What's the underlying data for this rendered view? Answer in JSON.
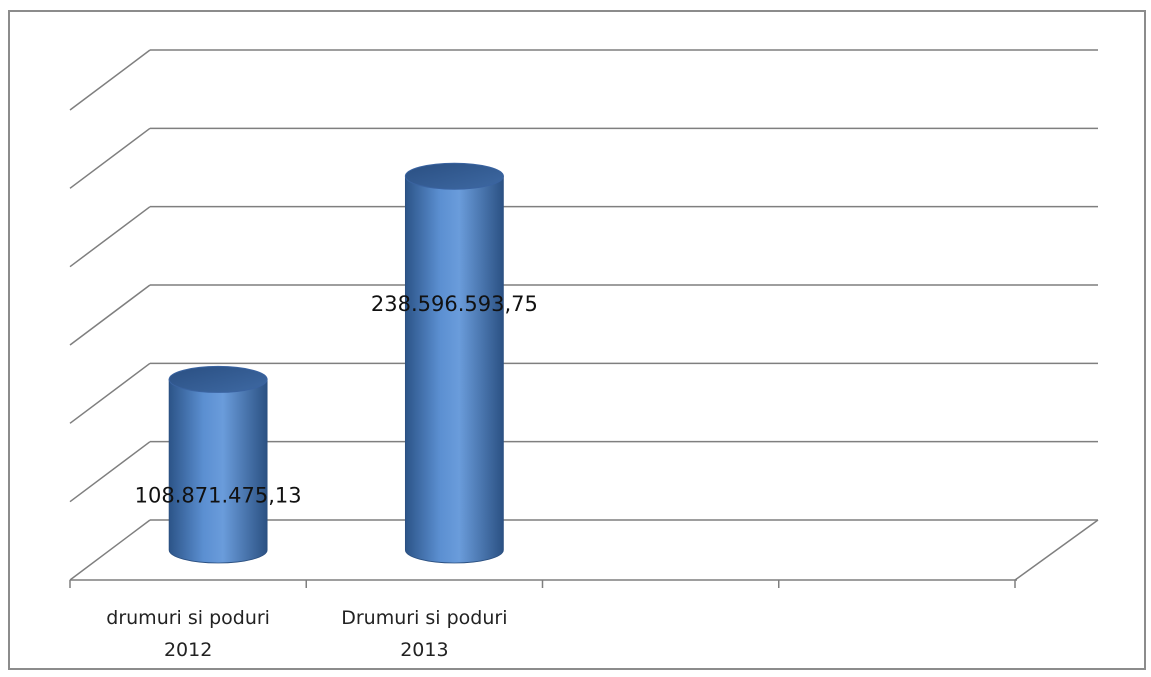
{
  "chart_data": {
    "type": "bar",
    "style": "3d-cylinder",
    "categories": [
      [
        "drumuri si poduri",
        "2012"
      ],
      [
        "Drumuri si poduri",
        "2013"
      ],
      [
        "",
        ""
      ],
      [
        "",
        ""
      ]
    ],
    "values": [
      108871475.13,
      238596593.75,
      null,
      null
    ],
    "data_labels": [
      "108.871.475,13",
      "238.596.593,75",
      "",
      ""
    ],
    "title": "",
    "xlabel": "",
    "ylabel": "",
    "ylim": [
      0,
      300000000
    ],
    "y_gridline_step": 50000000,
    "grid": true,
    "legend": "none",
    "colors": {
      "bar": "#4f81bd",
      "bar_dark": "#2a4f80",
      "bar_light": "#8fb2e2",
      "gridline": "#7f7f7f",
      "frame": "#8c8c8c"
    }
  }
}
